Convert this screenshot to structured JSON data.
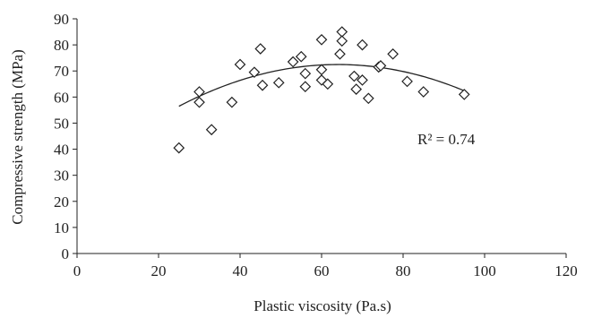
{
  "chart_data": {
    "type": "scatter",
    "xlabel": "Plastic viscosity (Pa.s)",
    "ylabel": "Compressive strength (MPa)",
    "xlim": [
      0,
      120
    ],
    "ylim": [
      0,
      90
    ],
    "xticks": [
      0,
      20,
      40,
      60,
      80,
      100,
      120
    ],
    "yticks": [
      0,
      10,
      20,
      30,
      40,
      50,
      60,
      70,
      80,
      90
    ],
    "grid": false,
    "marker": "diamond-open",
    "annotation": "R² = 0.74",
    "points": [
      {
        "x": 25,
        "y": 40.5
      },
      {
        "x": 30,
        "y": 62
      },
      {
        "x": 30,
        "y": 58
      },
      {
        "x": 33,
        "y": 47.5
      },
      {
        "x": 38,
        "y": 58
      },
      {
        "x": 40,
        "y": 72.5
      },
      {
        "x": 43.5,
        "y": 69.5
      },
      {
        "x": 45,
        "y": 78.5
      },
      {
        "x": 45.5,
        "y": 64.5
      },
      {
        "x": 49.5,
        "y": 65.5
      },
      {
        "x": 53,
        "y": 73.5
      },
      {
        "x": 55,
        "y": 75.5
      },
      {
        "x": 56,
        "y": 69
      },
      {
        "x": 56,
        "y": 64
      },
      {
        "x": 60,
        "y": 82
      },
      {
        "x": 60,
        "y": 70.5
      },
      {
        "x": 60,
        "y": 66.5
      },
      {
        "x": 61.5,
        "y": 65
      },
      {
        "x": 64.5,
        "y": 76.5
      },
      {
        "x": 65,
        "y": 85
      },
      {
        "x": 65,
        "y": 81.5
      },
      {
        "x": 68,
        "y": 68
      },
      {
        "x": 68.5,
        "y": 63
      },
      {
        "x": 70,
        "y": 80
      },
      {
        "x": 70,
        "y": 66.5
      },
      {
        "x": 71.5,
        "y": 59.5
      },
      {
        "x": 74,
        "y": 71.5
      },
      {
        "x": 74.5,
        "y": 72
      },
      {
        "x": 77.5,
        "y": 76.5
      },
      {
        "x": 81,
        "y": 66
      },
      {
        "x": 85,
        "y": 62
      },
      {
        "x": 95,
        "y": 61
      }
    ],
    "trendline": {
      "type": "quadratic",
      "x_range": [
        25,
        95
      ],
      "coefficients": [
        -0.0105,
        1.345,
        29.4
      ]
    }
  }
}
